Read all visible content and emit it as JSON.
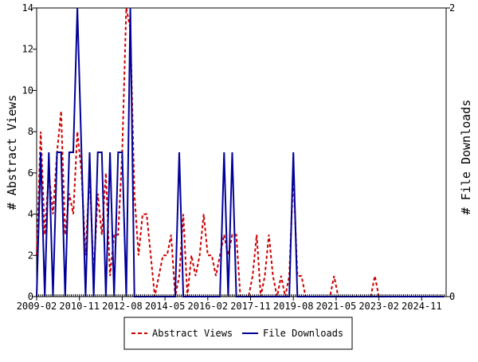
{
  "chart_data": {
    "type": "line",
    "title": "",
    "xlabel": "",
    "ylabel_left": "# Abstract Views",
    "ylabel_right": "# File Downloads",
    "x_tick_labels": [
      "2009-02",
      "2010-11",
      "2012-08",
      "2014-05",
      "2016-02",
      "2017-11",
      "2019-08",
      "2021-05",
      "2023-02",
      "2024-11"
    ],
    "y_left_ticks": [
      "0",
      "2",
      "4",
      "6",
      "8",
      "10",
      "12",
      "14"
    ],
    "y_right_ticks": [
      "0",
      "2"
    ],
    "ylim_left": [
      0,
      14
    ],
    "ylim_right": [
      0,
      2
    ],
    "xlim": [
      "2009-02",
      "2025-11"
    ],
    "grid": false,
    "legend_position": "bottom-center",
    "legend": [
      {
        "name": "Abstract Views",
        "color": "#cc0000",
        "style": "dashed"
      },
      {
        "name": "File Downloads",
        "color": "#000099",
        "style": "solid"
      }
    ],
    "series": [
      {
        "name": "Abstract Views",
        "axis": "left",
        "color": "#cc0000",
        "x": [
          "2009-02",
          "2009-04",
          "2009-06",
          "2009-08",
          "2009-10",
          "2009-12",
          "2010-02",
          "2010-04",
          "2010-06",
          "2010-08",
          "2010-10",
          "2010-12",
          "2011-02",
          "2011-04",
          "2011-06",
          "2011-08",
          "2011-10",
          "2011-12",
          "2012-02",
          "2012-04",
          "2012-06",
          "2012-08",
          "2012-10",
          "2012-12",
          "2013-02",
          "2013-04",
          "2013-06",
          "2013-08",
          "2013-10",
          "2013-12",
          "2014-02",
          "2014-04",
          "2014-06",
          "2014-08",
          "2014-10",
          "2014-12",
          "2015-02",
          "2015-04",
          "2015-06",
          "2015-08",
          "2015-10",
          "2015-12",
          "2016-02",
          "2016-04",
          "2016-06",
          "2016-08",
          "2016-10",
          "2016-12",
          "2017-02",
          "2017-04",
          "2017-06",
          "2017-08",
          "2017-10",
          "2017-12",
          "2018-02",
          "2018-04",
          "2018-06",
          "2018-08",
          "2018-10",
          "2018-12",
          "2019-02",
          "2019-04",
          "2019-06",
          "2019-08",
          "2019-10",
          "2019-12",
          "2020-02",
          "2020-04",
          "2020-06",
          "2020-08",
          "2020-10",
          "2020-12",
          "2021-02",
          "2021-04",
          "2021-06",
          "2021-08",
          "2021-10",
          "2021-12",
          "2022-02",
          "2022-04",
          "2022-06",
          "2022-08",
          "2022-10",
          "2022-12",
          "2023-02",
          "2023-04",
          "2023-06",
          "2023-08",
          "2023-10",
          "2023-12",
          "2024-02",
          "2024-04",
          "2024-06",
          "2024-08",
          "2024-10",
          "2024-12",
          "2025-02",
          "2025-04",
          "2025-06",
          "2025-08",
          "2025-10"
        ],
        "values": [
          2,
          8,
          3,
          6,
          4,
          7,
          9,
          3,
          5,
          4,
          8,
          6,
          2,
          6,
          1,
          5,
          3,
          6,
          1,
          3,
          3,
          7,
          14,
          13,
          5,
          2,
          4,
          4,
          2,
          0,
          1,
          2,
          2,
          3,
          0,
          1,
          4,
          0,
          2,
          1,
          2,
          4,
          2,
          2,
          1,
          2,
          3,
          2,
          3,
          3,
          0,
          0,
          0,
          1,
          3,
          0,
          1,
          3,
          1,
          0,
          1,
          0,
          1,
          6,
          1,
          1,
          0,
          0,
          0,
          0,
          0,
          0,
          0,
          1,
          0,
          0,
          0,
          0,
          0,
          0,
          0,
          0,
          0,
          1,
          0,
          0,
          0,
          0,
          0,
          0,
          0,
          0,
          0,
          0,
          0,
          0,
          0,
          0,
          0,
          0,
          0
        ]
      },
      {
        "name": "File Downloads",
        "axis": "right",
        "color": "#000099",
        "x": [
          "2009-02",
          "2009-04",
          "2009-06",
          "2009-08",
          "2009-10",
          "2009-12",
          "2010-02",
          "2010-04",
          "2010-06",
          "2010-08",
          "2010-10",
          "2010-12",
          "2011-02",
          "2011-04",
          "2011-06",
          "2011-08",
          "2011-10",
          "2011-12",
          "2012-02",
          "2012-04",
          "2012-06",
          "2012-08",
          "2012-10",
          "2012-12",
          "2013-02",
          "2013-04",
          "2013-06",
          "2013-08",
          "2013-10",
          "2013-12",
          "2014-02",
          "2014-04",
          "2014-06",
          "2014-08",
          "2014-10",
          "2014-12",
          "2015-02",
          "2015-04",
          "2015-06",
          "2015-08",
          "2015-10",
          "2015-12",
          "2016-02",
          "2016-04",
          "2016-06",
          "2016-08",
          "2016-10",
          "2016-12",
          "2017-02",
          "2017-04",
          "2017-06",
          "2017-08",
          "2017-10",
          "2017-12",
          "2018-02",
          "2018-04",
          "2018-06",
          "2018-08",
          "2018-10",
          "2018-12",
          "2019-02",
          "2019-04",
          "2019-06",
          "2019-08",
          "2019-10",
          "2019-12",
          "2020-02",
          "2020-04",
          "2020-06",
          "2020-08",
          "2020-10",
          "2020-12",
          "2021-02",
          "2021-04",
          "2021-06",
          "2021-08",
          "2021-10",
          "2021-12",
          "2022-02",
          "2022-04",
          "2022-06",
          "2022-08",
          "2022-10",
          "2022-12",
          "2023-02",
          "2023-04",
          "2023-06",
          "2023-08",
          "2023-10",
          "2023-12",
          "2024-02",
          "2024-04",
          "2024-06",
          "2024-08",
          "2024-10",
          "2024-12",
          "2025-02",
          "2025-04",
          "2025-06",
          "2025-08",
          "2025-10"
        ],
        "values": [
          0,
          1,
          0,
          1,
          0,
          1,
          1,
          0,
          1,
          1,
          2,
          1,
          0,
          1,
          0,
          1,
          1,
          0,
          1,
          0,
          1,
          1,
          0,
          2,
          0,
          0,
          0,
          0,
          0,
          0,
          0,
          0,
          0,
          0,
          0,
          1,
          0,
          0,
          0,
          0,
          0,
          0,
          0,
          0,
          0,
          0,
          1,
          0,
          1,
          0,
          0,
          0,
          0,
          0,
          0,
          0,
          0,
          0,
          0,
          0,
          0,
          0,
          0,
          1,
          0,
          0,
          0,
          0,
          0,
          0,
          0,
          0,
          0,
          0,
          0,
          0,
          0,
          0,
          0,
          0,
          0,
          0,
          0,
          0,
          0,
          0,
          0,
          0,
          0,
          0,
          0,
          0,
          0,
          0,
          0,
          0,
          0,
          0,
          0,
          0,
          0
        ]
      }
    ]
  }
}
